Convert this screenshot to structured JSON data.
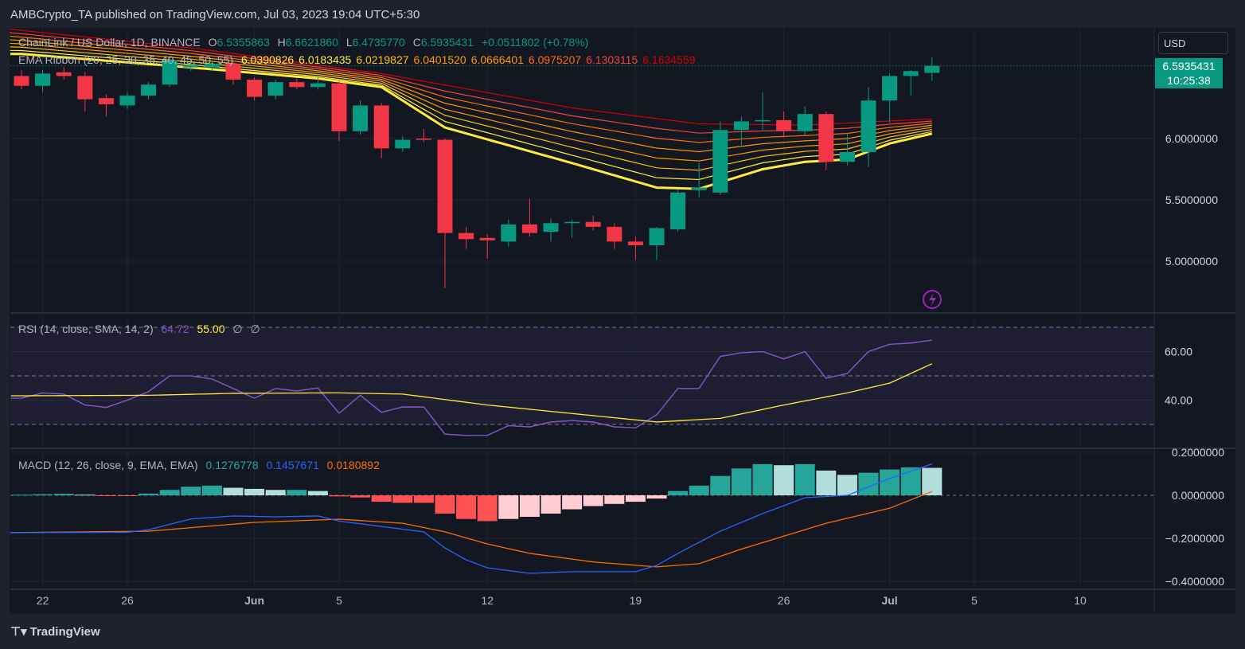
{
  "header": {
    "published": "AMBCrypto_TA published on TradingView.com, Jul 03, 2023 19:04 UTC+5:30"
  },
  "symbol_legend": {
    "name": "ChainLink / US Dollar, 1D, BINANCE",
    "o_label": "O",
    "o": "6.5355863",
    "h_label": "H",
    "h": "6.6621860",
    "l_label": "L",
    "l": "6.4735770",
    "c_label": "C",
    "c": "6.5935431",
    "change": "+0.0511802 (+0.78%)"
  },
  "ema_legend": {
    "name": "EMA Ribbon (20, 25, 30, 35, 40, 45, 50, 55)",
    "values": [
      "6.0390826",
      "6.0183435",
      "6.0219827",
      "6.0401520",
      "6.0666401",
      "6.0975207",
      "6.1303115",
      "6.1634559"
    ],
    "colors": [
      "#ffeb3b",
      "#ffeb3b",
      "#ffc107",
      "#ff9800",
      "#ff9800",
      "#ff6d00",
      "#f44336",
      "#d50000"
    ]
  },
  "rsi_legend": {
    "name": "RSI (14, close, SMA, 14, 2)",
    "rsi": "64.72",
    "sma": "55.00",
    "extra1": "∅",
    "extra2": "∅"
  },
  "macd_legend": {
    "name": "MACD (12, 26, close, 9, EMA, EMA)",
    "hist": "0.1276778",
    "macd": "0.1457671",
    "signal": "0.0180892"
  },
  "price_axis": {
    "currency": "USD",
    "labels": [
      "6.0000000",
      "5.5000000",
      "5.0000000"
    ],
    "last_price": "6.5935431",
    "countdown": "10:25:38"
  },
  "rsi_axis": {
    "labels": [
      "60.00",
      "40.00"
    ]
  },
  "macd_axis": {
    "labels": [
      "0.2000000",
      "0.0000000",
      "−0.2000000",
      "−0.4000000"
    ]
  },
  "date_axis": [
    {
      "label": "22",
      "day": 1
    },
    {
      "label": "26",
      "day": 5
    },
    {
      "label": "Jun",
      "day": 11
    },
    {
      "label": "5",
      "day": 15
    },
    {
      "label": "12",
      "day": 22
    },
    {
      "label": "19",
      "day": 29
    },
    {
      "label": "26",
      "day": 36
    },
    {
      "label": "Jul",
      "day": 41
    },
    {
      "label": "5",
      "day": 45
    },
    {
      "label": "10",
      "day": 50
    }
  ],
  "footer": {
    "brand": "TradingView"
  },
  "colors": {
    "up": "#089981",
    "down": "#f23645",
    "rsi": "#7e57c2",
    "rsi_sma": "#ffeb3b",
    "macd": "#2962ff",
    "signal": "#ff6d00"
  },
  "chart_data": {
    "type": "candlestick",
    "start_date": "2023-05-21",
    "candles": [
      [
        6.51,
        6.56,
        6.4,
        6.43
      ],
      [
        6.43,
        6.56,
        6.38,
        6.53
      ],
      [
        6.54,
        6.58,
        6.48,
        6.51
      ],
      [
        6.51,
        6.54,
        6.22,
        6.32
      ],
      [
        6.33,
        6.36,
        6.18,
        6.28
      ],
      [
        6.27,
        6.38,
        6.24,
        6.35
      ],
      [
        6.35,
        6.46,
        6.32,
        6.44
      ],
      [
        6.44,
        6.66,
        6.42,
        6.64
      ],
      [
        6.58,
        6.64,
        6.55,
        6.6
      ],
      [
        6.58,
        6.63,
        6.55,
        6.61
      ],
      [
        6.61,
        6.64,
        6.44,
        6.48
      ],
      [
        6.48,
        6.5,
        6.31,
        6.34
      ],
      [
        6.35,
        6.48,
        6.32,
        6.46
      ],
      [
        6.46,
        6.49,
        6.4,
        6.42
      ],
      [
        6.42,
        6.5,
        6.4,
        6.45
      ],
      [
        6.45,
        6.47,
        5.98,
        6.06
      ],
      [
        6.06,
        6.31,
        6.03,
        6.27
      ],
      [
        6.27,
        6.29,
        5.84,
        5.92
      ],
      [
        5.92,
        6.02,
        5.89,
        5.99
      ],
      [
        6.0,
        6.08,
        5.97,
        5.99
      ],
      [
        5.99,
        6.0,
        4.78,
        5.23
      ],
      [
        5.23,
        5.28,
        5.1,
        5.18
      ],
      [
        5.19,
        5.22,
        5.02,
        5.17
      ],
      [
        5.16,
        5.34,
        5.12,
        5.3
      ],
      [
        5.3,
        5.51,
        5.2,
        5.23
      ],
      [
        5.24,
        5.35,
        5.16,
        5.31
      ],
      [
        5.31,
        5.34,
        5.19,
        5.32
      ],
      [
        5.32,
        5.37,
        5.25,
        5.28
      ],
      [
        5.28,
        5.31,
        5.1,
        5.16
      ],
      [
        5.16,
        5.2,
        5.01,
        5.13
      ],
      [
        5.13,
        5.28,
        5.01,
        5.27
      ],
      [
        5.26,
        5.58,
        5.24,
        5.56
      ],
      [
        5.58,
        5.8,
        5.52,
        5.6
      ],
      [
        5.56,
        6.14,
        5.54,
        6.07
      ],
      [
        6.07,
        6.18,
        5.93,
        6.14
      ],
      [
        6.14,
        6.38,
        6.07,
        6.15
      ],
      [
        6.15,
        6.22,
        6.01,
        6.06
      ],
      [
        6.06,
        6.26,
        6.03,
        6.2
      ],
      [
        6.2,
        6.22,
        5.74,
        5.81
      ],
      [
        5.81,
        6.04,
        5.78,
        5.89
      ],
      [
        5.89,
        6.42,
        5.77,
        6.31
      ],
      [
        6.31,
        6.53,
        6.13,
        6.51
      ],
      [
        6.51,
        6.56,
        6.35,
        6.55
      ],
      [
        6.5356,
        6.6622,
        6.4736,
        6.5935
      ]
    ],
    "ema20": [
      [
        0,
        6.69
      ],
      [
        8,
        6.58
      ],
      [
        14,
        6.49
      ],
      [
        17,
        6.42
      ],
      [
        20,
        6.09
      ],
      [
        26,
        5.8
      ],
      [
        30,
        5.6
      ],
      [
        32,
        5.59
      ],
      [
        35,
        5.75
      ],
      [
        37,
        5.81
      ],
      [
        39,
        5.83
      ],
      [
        41,
        5.96
      ],
      [
        43,
        6.04
      ]
    ],
    "ema55": [
      [
        -1,
        6.9
      ],
      [
        8,
        6.74
      ],
      [
        17,
        6.53
      ],
      [
        26,
        6.25
      ],
      [
        32,
        6.12
      ],
      [
        37,
        6.11
      ],
      [
        43,
        6.16
      ]
    ],
    "rsi": [
      40.8,
      43,
      42.5,
      38,
      37,
      40,
      43.5,
      50,
      50,
      48.7,
      44.8,
      40.8,
      44.8,
      43.8,
      45,
      34.6,
      42,
      35,
      37.2,
      37.2,
      26,
      25.5,
      25.5,
      29.5,
      29,
      31,
      31.6,
      31,
      29,
      28.6,
      34,
      44.8,
      44.8,
      58,
      59.5,
      60,
      57,
      60,
      49,
      51,
      60,
      63,
      63.5,
      64.72
    ],
    "rsi_sma": [
      [
        0,
        41.8
      ],
      [
        6,
        42
      ],
      [
        10,
        42.8
      ],
      [
        15,
        43
      ],
      [
        18,
        42.5
      ],
      [
        22,
        38
      ],
      [
        26,
        34.5
      ],
      [
        30,
        31
      ],
      [
        33,
        32.5
      ],
      [
        36,
        38
      ],
      [
        39,
        43
      ],
      [
        41,
        47
      ],
      [
        43,
        55
      ]
    ],
    "rsi_bands": [
      70,
      50,
      30
    ],
    "macd_hist": [
      0.003,
      0.005,
      0.007,
      0.003,
      -0.003,
      -0.003,
      0.008,
      0.025,
      0.04,
      0.045,
      0.035,
      0.03,
      0.025,
      0.025,
      0.02,
      -0.005,
      -0.01,
      -0.03,
      -0.035,
      -0.035,
      -0.085,
      -0.11,
      -0.12,
      -0.11,
      -0.1,
      -0.085,
      -0.065,
      -0.05,
      -0.04,
      -0.03,
      -0.015,
      0.02,
      0.045,
      0.09,
      0.125,
      0.145,
      0.14,
      0.145,
      0.115,
      0.095,
      0.105,
      0.12,
      0.13,
      0.1277
    ],
    "macd_line": [
      [
        -1,
        -0.174
      ],
      [
        5,
        -0.172
      ],
      [
        6,
        -0.16
      ],
      [
        8,
        -0.11
      ],
      [
        10,
        -0.096
      ],
      [
        12,
        -0.1
      ],
      [
        14,
        -0.096
      ],
      [
        15,
        -0.12
      ],
      [
        17,
        -0.145
      ],
      [
        19,
        -0.17
      ],
      [
        20,
        -0.245
      ],
      [
        21,
        -0.3
      ],
      [
        22,
        -0.337
      ],
      [
        24,
        -0.363
      ],
      [
        26,
        -0.355
      ],
      [
        29,
        -0.355
      ],
      [
        30,
        -0.326
      ],
      [
        31,
        -0.27
      ],
      [
        33,
        -0.167
      ],
      [
        35,
        -0.085
      ],
      [
        37,
        -0.011
      ],
      [
        39,
        0.0
      ],
      [
        41,
        0.078
      ],
      [
        43,
        0.1458
      ]
    ],
    "signal_line": [
      [
        -1,
        -0.174
      ],
      [
        6,
        -0.167
      ],
      [
        11,
        -0.126
      ],
      [
        15,
        -0.111
      ],
      [
        18,
        -0.13
      ],
      [
        20,
        -0.17
      ],
      [
        22,
        -0.226
      ],
      [
        24,
        -0.27
      ],
      [
        27,
        -0.31
      ],
      [
        30,
        -0.333
      ],
      [
        32,
        -0.318
      ],
      [
        34,
        -0.25
      ],
      [
        36,
        -0.19
      ],
      [
        38,
        -0.13
      ],
      [
        41,
        -0.06
      ],
      [
        43,
        0.018
      ]
    ]
  }
}
